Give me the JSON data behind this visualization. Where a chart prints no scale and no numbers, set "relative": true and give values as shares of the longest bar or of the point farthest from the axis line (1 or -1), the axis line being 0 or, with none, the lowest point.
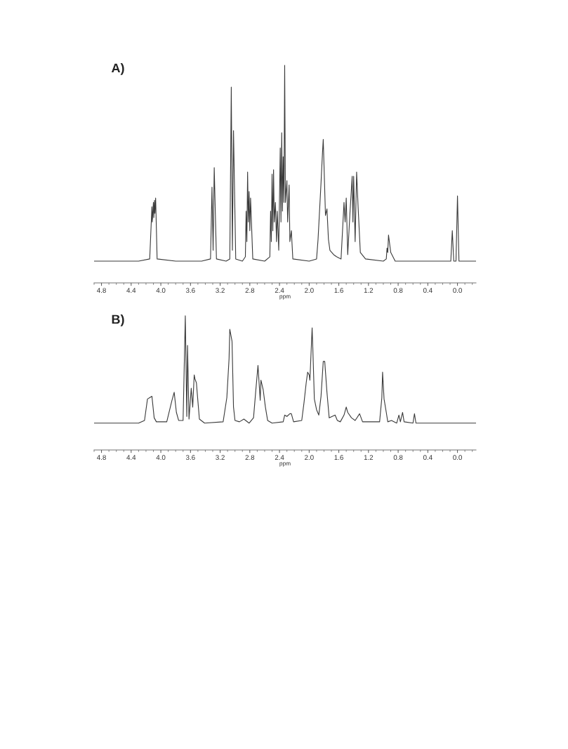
{
  "chart_data": [
    {
      "type": "line",
      "title": "A)",
      "xlabel": "ppm",
      "relative": true,
      "xlim": [
        4.9,
        -0.25
      ],
      "xticks": [
        4.8,
        4.4,
        {
          "value": 4.0,
          "label": "4.0"
        },
        3.6,
        3.2,
        2.8,
        2.4,
        {
          "value": 2.0,
          "label": "2.0"
        },
        1.6,
        1.2,
        0.8,
        0.4,
        {
          "value": 0.0,
          "label": "0.0"
        }
      ],
      "tick_labels": "x",
      "series": [
        {
          "color": "#3a3a3a",
          "x": [
            4.9,
            4.3,
            4.15,
            4.12,
            4.115,
            4.1,
            4.095,
            4.085,
            4.08,
            4.07,
            4.05,
            3.8,
            3.45,
            3.33,
            3.31,
            3.295,
            3.28,
            3.25,
            3.12,
            3.07,
            3.05,
            3.035,
            3.02,
            2.99,
            2.9,
            2.86,
            2.85,
            2.84,
            2.83,
            2.82,
            2.81,
            2.8,
            2.79,
            2.76,
            2.6,
            2.53,
            2.52,
            2.51,
            2.5,
            2.49,
            2.48,
            2.47,
            2.455,
            2.44,
            2.43,
            2.41,
            2.39,
            2.38,
            2.37,
            2.36,
            2.35,
            2.34,
            2.33,
            2.32,
            2.3,
            2.29,
            2.27,
            2.26,
            2.24,
            2.22,
            2.0,
            1.9,
            1.88,
            1.84,
            1.82,
            1.81,
            1.78,
            1.76,
            1.74,
            1.72,
            1.67,
            1.63,
            1.57,
            1.53,
            1.515,
            1.5,
            1.48,
            1.45,
            1.42,
            1.41,
            1.4,
            1.38,
            1.36,
            1.34,
            1.31,
            1.24,
            1.0,
            0.96,
            0.95,
            0.94,
            0.93,
            0.9,
            0.84,
            0.3,
            0.09,
            0.07,
            0.05,
            0.02,
            0.0,
            -0.02,
            -0.25
          ],
          "values": [
            0.1,
            0.1,
            0.11,
            0.35,
            0.28,
            0.37,
            0.3,
            0.38,
            0.32,
            0.39,
            0.11,
            0.1,
            0.1,
            0.11,
            0.44,
            0.15,
            0.53,
            0.11,
            0.1,
            0.11,
            0.9,
            0.15,
            0.7,
            0.11,
            0.1,
            0.12,
            0.33,
            0.19,
            0.51,
            0.28,
            0.42,
            0.24,
            0.39,
            0.11,
            0.1,
            0.12,
            0.33,
            0.19,
            0.5,
            0.24,
            0.52,
            0.28,
            0.37,
            0.19,
            0.33,
            0.15,
            0.62,
            0.28,
            0.69,
            0.33,
            0.58,
            0.37,
            1.0,
            0.37,
            0.47,
            0.28,
            0.45,
            0.19,
            0.24,
            0.11,
            0.1,
            0.11,
            0.2,
            0.46,
            0.6,
            0.66,
            0.31,
            0.34,
            0.2,
            0.15,
            0.13,
            0.12,
            0.11,
            0.37,
            0.28,
            0.39,
            0.13,
            0.32,
            0.49,
            0.28,
            0.49,
            0.19,
            0.51,
            0.35,
            0.14,
            0.11,
            0.1,
            0.11,
            0.16,
            0.14,
            0.22,
            0.14,
            0.1,
            0.1,
            0.1,
            0.24,
            0.1,
            0.1,
            0.4,
            0.1,
            0.1
          ]
        }
      ]
    },
    {
      "type": "line",
      "title": "B)",
      "xlabel": "ppm",
      "relative": true,
      "xlim": [
        4.9,
        -0.25
      ],
      "xticks": [
        4.8,
        4.4,
        {
          "value": 4.0,
          "label": "4.0"
        },
        3.6,
        3.2,
        2.8,
        2.4,
        {
          "value": 2.0,
          "label": "2.0"
        },
        1.6,
        1.2,
        0.8,
        0.4,
        {
          "value": 0.0,
          "label": "0.0"
        }
      ],
      "tick_labels": "x",
      "series": [
        {
          "color": "#3a3a3a",
          "x": [
            4.9,
            4.3,
            4.22,
            4.18,
            4.15,
            4.12,
            4.09,
            4.06,
            3.92,
            3.85,
            3.82,
            3.79,
            3.76,
            3.7,
            3.67,
            3.65,
            3.64,
            3.62,
            3.59,
            3.57,
            3.55,
            3.54,
            3.52,
            3.51,
            3.48,
            3.41,
            3.16,
            3.11,
            3.08,
            3.07,
            3.04,
            3.02,
            3.0,
            2.94,
            2.88,
            2.81,
            2.75,
            2.72,
            2.69,
            2.66,
            2.65,
            2.62,
            2.59,
            2.56,
            2.5,
            2.35,
            2.33,
            2.3,
            2.26,
            2.24,
            2.21,
            2.1,
            2.07,
            2.04,
            2.02,
            2.0,
            1.99,
            1.96,
            1.95,
            1.93,
            1.9,
            1.87,
            1.84,
            1.81,
            1.79,
            1.76,
            1.73,
            1.65,
            1.62,
            1.58,
            1.53,
            1.5,
            1.48,
            1.43,
            1.38,
            1.32,
            1.28,
            1.05,
            1.02,
            1.01,
            0.99,
            0.96,
            0.94,
            0.89,
            0.82,
            0.79,
            0.77,
            0.74,
            0.72,
            0.6,
            0.58,
            0.56,
            -0.25
          ],
          "values": [
            0.2,
            0.2,
            0.22,
            0.38,
            0.39,
            0.4,
            0.24,
            0.21,
            0.21,
            0.37,
            0.43,
            0.28,
            0.22,
            0.22,
            1.0,
            0.25,
            0.78,
            0.23,
            0.46,
            0.32,
            0.56,
            0.53,
            0.5,
            0.43,
            0.23,
            0.2,
            0.21,
            0.39,
            0.68,
            0.9,
            0.81,
            0.32,
            0.22,
            0.21,
            0.23,
            0.2,
            0.24,
            0.44,
            0.63,
            0.37,
            0.52,
            0.45,
            0.32,
            0.22,
            0.2,
            0.21,
            0.26,
            0.25,
            0.27,
            0.27,
            0.21,
            0.22,
            0.35,
            0.5,
            0.58,
            0.56,
            0.52,
            0.91,
            0.75,
            0.38,
            0.3,
            0.26,
            0.4,
            0.66,
            0.66,
            0.43,
            0.24,
            0.26,
            0.22,
            0.21,
            0.26,
            0.32,
            0.28,
            0.24,
            0.22,
            0.27,
            0.21,
            0.21,
            0.39,
            0.58,
            0.38,
            0.28,
            0.21,
            0.22,
            0.2,
            0.26,
            0.21,
            0.28,
            0.21,
            0.2,
            0.27,
            0.2,
            0.2
          ]
        }
      ]
    }
  ]
}
